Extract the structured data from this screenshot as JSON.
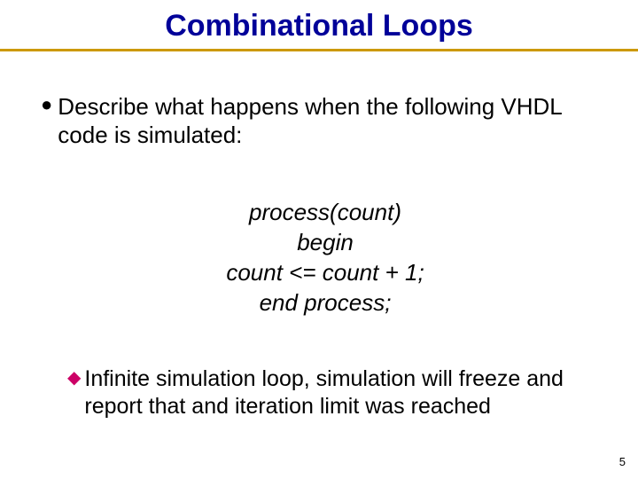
{
  "title": {
    "text": "Combinational Loops",
    "color": "#000099",
    "fontsize": 34,
    "rule_color": "#cc9900",
    "rule_thickness": 3
  },
  "bullet1": {
    "marker_color": "#000000",
    "text": "Describe what happens when the following VHDL code is simulated:",
    "fontsize": 26
  },
  "code": {
    "line1": "process(count)",
    "line2": "begin",
    "line3": "count <= count + 1;",
    "line4": "end process;",
    "fontsize": 26,
    "style": "italic"
  },
  "bullet2": {
    "marker_color": "#cc0066",
    "text": "Infinite simulation loop, simulation will freeze and report that and iteration limit was reached",
    "fontsize": 25
  },
  "page_number": "5"
}
